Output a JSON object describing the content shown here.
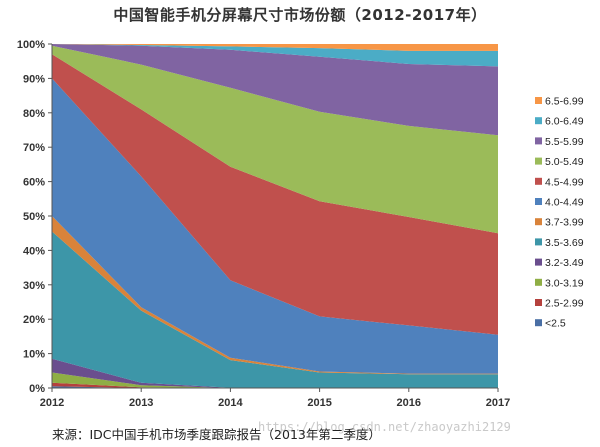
{
  "chart_data": {
    "type": "area",
    "stacked": true,
    "title": "中国智能手机分屏幕尺寸市场份额（2012-2017年）",
    "xlabel": "",
    "ylabel": "",
    "categories": [
      "2012",
      "2013",
      "2014",
      "2015",
      "2016",
      "2017"
    ],
    "ylim": [
      0,
      100
    ],
    "yticks": [
      "0%",
      "10%",
      "20%",
      "30%",
      "40%",
      "50%",
      "60%",
      "70%",
      "80%",
      "90%",
      "100%"
    ],
    "grid": false,
    "legend_position": "right",
    "series": [
      {
        "name": "<2.5",
        "color": "#4a6fa5",
        "values": [
          0.5,
          0,
          0,
          0,
          0,
          0
        ]
      },
      {
        "name": "2.5-2.99",
        "color": "#b5413d",
        "values": [
          1.0,
          0.2,
          0,
          0,
          0,
          0
        ]
      },
      {
        "name": "3.0-3.19",
        "color": "#8fae45",
        "values": [
          3.0,
          0.6,
          0,
          0,
          0,
          0
        ]
      },
      {
        "name": "3.2-3.49",
        "color": "#6a4e8e",
        "values": [
          4.0,
          0.7,
          0.1,
          0,
          0,
          0
        ]
      },
      {
        "name": "3.5-3.69",
        "color": "#3d96a8",
        "values": [
          37.0,
          21.0,
          8.0,
          4.5,
          4.0,
          4.0
        ]
      },
      {
        "name": "3.7-3.99",
        "color": "#d9833a",
        "values": [
          4.5,
          1.0,
          0.7,
          0.3,
          0.2,
          0.2
        ]
      },
      {
        "name": "4.0-4.49",
        "color": "#4f81bd",
        "values": [
          40.0,
          38.0,
          22.5,
          16.0,
          14.0,
          11.3
        ]
      },
      {
        "name": "4.5-4.99",
        "color": "#c0504d",
        "values": [
          7.0,
          19.5,
          33.0,
          33.5,
          31.5,
          29.5
        ]
      },
      {
        "name": "5.0-5.49",
        "color": "#9bbb59",
        "values": [
          2.5,
          13.0,
          23.0,
          26.0,
          26.5,
          28.5
        ]
      },
      {
        "name": "5.5-5.99",
        "color": "#8064a2",
        "values": [
          0.5,
          5.5,
          11.0,
          16.0,
          18.0,
          20.0
        ]
      },
      {
        "name": "6.0-6.49",
        "color": "#4bacc6",
        "values": [
          0,
          0.2,
          1.0,
          2.5,
          3.8,
          4.5
        ]
      },
      {
        "name": "6.5-6.99",
        "color": "#f79646",
        "values": [
          0,
          0.3,
          0.7,
          1.2,
          2.0,
          2.0
        ]
      }
    ]
  },
  "source": "来源：IDC中国手机市场季度跟踪报告（2013年第二季度）",
  "watermark": "https://blog.csdn.net/zhaoyazhi2129"
}
